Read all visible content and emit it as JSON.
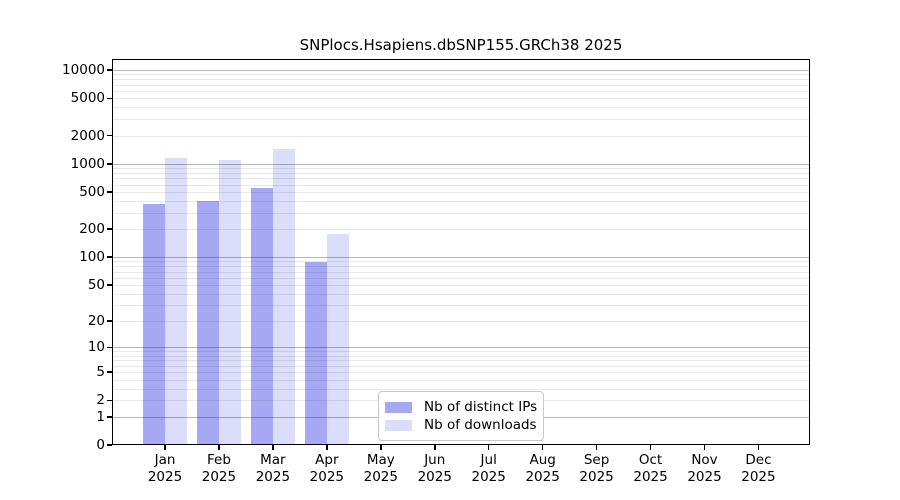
{
  "chart_data": {
    "type": "bar",
    "title": "SNPlocs.Hsapiens.dbSNP155.GRCh38 2025",
    "xlabel": "",
    "ylabel": "",
    "y_scale": "log10(value+1)",
    "ylim": [
      0,
      13100
    ],
    "grid": "horizontal major+minor (log), on",
    "legend_position": "inside plot, lower center",
    "y_ticks": [
      0,
      1,
      2,
      5,
      10,
      20,
      50,
      100,
      200,
      500,
      1000,
      2000,
      5000,
      10000
    ],
    "categories": [
      {
        "month": "Jan",
        "year": "2025"
      },
      {
        "month": "Feb",
        "year": "2025"
      },
      {
        "month": "Mar",
        "year": "2025"
      },
      {
        "month": "Apr",
        "year": "2025"
      },
      {
        "month": "May",
        "year": "2025"
      },
      {
        "month": "Jun",
        "year": "2025"
      },
      {
        "month": "Jul",
        "year": "2025"
      },
      {
        "month": "Aug",
        "year": "2025"
      },
      {
        "month": "Sep",
        "year": "2025"
      },
      {
        "month": "Oct",
        "year": "2025"
      },
      {
        "month": "Nov",
        "year": "2025"
      },
      {
        "month": "Dec",
        "year": "2025"
      }
    ],
    "series": [
      {
        "name": "Nb of distinct IPs",
        "color": "#a7a8f3",
        "values": [
          370,
          405,
          548,
          89,
          null,
          null,
          null,
          null,
          null,
          null,
          null,
          null
        ]
      },
      {
        "name": "Nb of downloads",
        "color": "#dbddfa",
        "values": [
          1160,
          1110,
          1430,
          177,
          null,
          null,
          null,
          null,
          null,
          null,
          null,
          null
        ]
      }
    ]
  }
}
